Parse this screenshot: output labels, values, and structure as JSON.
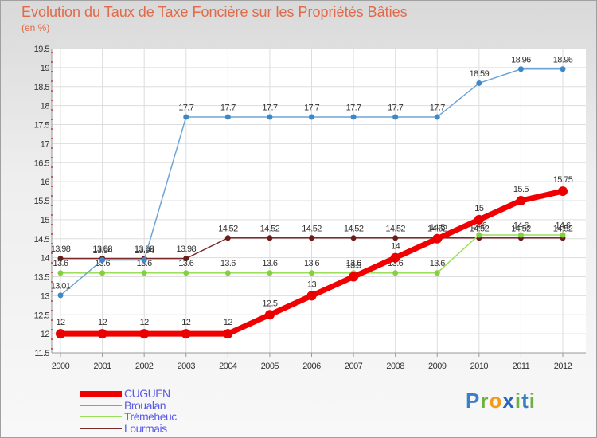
{
  "title": "Evolution du Taux de Taxe Foncière sur les Propriétés Bâties",
  "subtitle": "(en %)",
  "logo": {
    "p": "P",
    "r": "r",
    "o": "o",
    "x": "x",
    "i": "i",
    "t": "t",
    "i2": "i"
  },
  "chart_data": {
    "type": "line",
    "title": "Evolution du Taux de Taxe Foncière sur les Propriétés Bâties",
    "ylabel": "(en %)",
    "xlabel": "",
    "categories": [
      "2000",
      "2001",
      "2002",
      "2003",
      "2004",
      "2005",
      "2006",
      "2007",
      "2008",
      "2009",
      "2010",
      "2011",
      "2012"
    ],
    "ylim": [
      11.5,
      19.5
    ],
    "yticks": [
      11.5,
      12,
      12.5,
      13,
      13.5,
      14,
      14.5,
      15,
      15.5,
      16,
      16.5,
      17,
      17.5,
      18,
      18.5,
      19,
      19.5
    ],
    "legend_position": "bottom-left",
    "series": [
      {
        "name": "Lourmais",
        "color": "#7b2a2a",
        "marker": "#6a1d1d",
        "width": 1.5,
        "radius": 3.5,
        "values": [
          13.98,
          13.98,
          13.98,
          13.98,
          14.52,
          14.52,
          14.52,
          14.52,
          14.52,
          14.52,
          14.52,
          14.52,
          14.52
        ],
        "labels": [
          "13.98",
          "13.98",
          "13.98",
          "13.98",
          "14.52",
          "14.52",
          "14.52",
          "14.52",
          "14.52",
          "14.52",
          "14.52",
          "14.52",
          "14.52"
        ]
      },
      {
        "name": "Trémeheuc",
        "color": "#9ade5a",
        "marker": "#84d040",
        "width": 1.5,
        "radius": 3.5,
        "values": [
          13.6,
          13.6,
          13.6,
          13.6,
          13.6,
          13.6,
          13.6,
          13.6,
          13.6,
          13.6,
          14.6,
          14.6,
          14.6
        ],
        "labels": [
          "13.6",
          "13.6",
          "13.6",
          "13.6",
          "13.6",
          "13.6",
          "13.6",
          "13.6",
          "13.6",
          "13.6",
          "14.6",
          "14.6",
          "14.6"
        ]
      },
      {
        "name": "Broualan",
        "color": "#6ea4d6",
        "marker": "#3f88c8",
        "width": 1.5,
        "radius": 3.5,
        "values": [
          13.01,
          13.94,
          13.94,
          17.7,
          17.7,
          17.7,
          17.7,
          17.7,
          17.7,
          17.7,
          18.59,
          18.96,
          18.96
        ],
        "labels": [
          "13.01",
          "13.94",
          "13.94",
          "17.7",
          "17.7",
          "17.7",
          "17.7",
          "17.7",
          "17.7",
          "17.7",
          "18.59",
          "18.96",
          "18.96"
        ]
      },
      {
        "name": "CUGUEN",
        "color": "#f00000",
        "marker": "#ea0000",
        "width": 7,
        "radius": 6,
        "values": [
          12,
          12,
          12,
          12,
          12,
          12.5,
          13,
          13.5,
          14,
          14.5,
          15,
          15.5,
          15.75
        ],
        "labels": [
          "12",
          "12",
          "12",
          "12",
          "12",
          "12.5",
          "13",
          "13.5",
          "14",
          "14.5",
          "15",
          "15.5",
          "15.75"
        ]
      }
    ]
  },
  "legend": [
    {
      "label": "CUGUEN",
      "color": "#f00000",
      "size": 7
    },
    {
      "label": "Broualan",
      "color": "#6ea4d6",
      "size": 2
    },
    {
      "label": "Trémeheuc",
      "color": "#9ade5a",
      "size": 2
    },
    {
      "label": "Lourmais",
      "color": "#7b2a2a",
      "size": 2
    }
  ]
}
